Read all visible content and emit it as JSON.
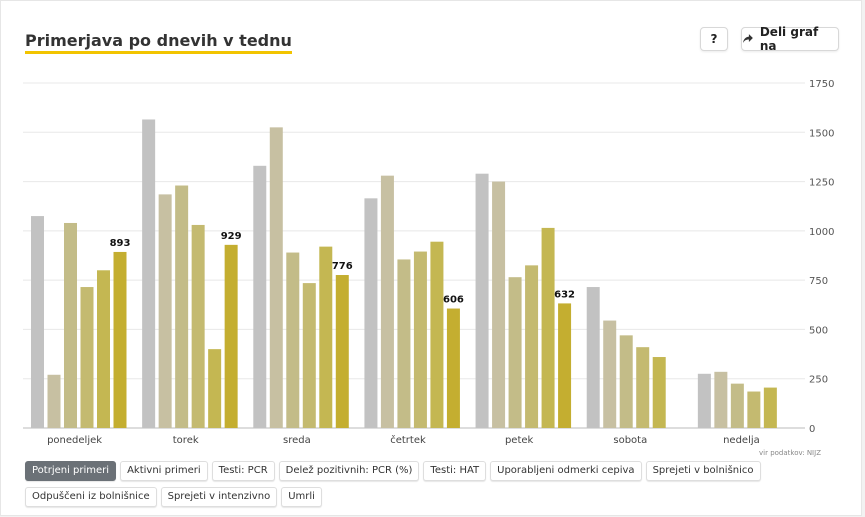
{
  "header": {
    "title": "Primerjava po dnevih v tednu",
    "help_label": "?",
    "share_label": "Deli graf na",
    "share_icon": "share-arrow-icon"
  },
  "source_note": "vir podatkov: NIJZ",
  "tags": [
    {
      "label": "Potrjeni primeri",
      "active": true
    },
    {
      "label": "Aktivni primeri",
      "active": false
    },
    {
      "label": "Testi: PCR",
      "active": false
    },
    {
      "label": "Delež pozitivnih: PCR (%)",
      "active": false
    },
    {
      "label": "Testi: HAT",
      "active": false
    },
    {
      "label": "Uporabljeni odmerki cepiva",
      "active": false
    },
    {
      "label": "Sprejeti v bolnišnico",
      "active": false
    },
    {
      "label": "Odpuščeni iz bolnišnice",
      "active": false
    },
    {
      "label": "Sprejeti v intenzivno",
      "active": false
    },
    {
      "label": "Umrli",
      "active": false
    }
  ],
  "chart_data": {
    "type": "bar",
    "categories": [
      "ponedeljek",
      "torek",
      "sreda",
      "četrtek",
      "petek",
      "sobota",
      "nedelja"
    ],
    "series_colors": [
      "#c2c2c2",
      "#c7c0a2",
      "#c3bc88",
      "#c4ba70",
      "#c4b752",
      "#c4ae30"
    ],
    "values": [
      [
        1075,
        270,
        1040,
        715,
        800,
        893
      ],
      [
        1565,
        1185,
        1230,
        1030,
        400,
        929
      ],
      [
        1330,
        1525,
        890,
        735,
        920,
        776
      ],
      [
        1165,
        1280,
        855,
        895,
        945,
        606
      ],
      [
        1290,
        1250,
        765,
        825,
        1015,
        632
      ],
      [
        715,
        545,
        470,
        410,
        360
      ],
      [
        275,
        285,
        225,
        185,
        205
      ]
    ],
    "value_labels": [
      "893",
      "929",
      "776",
      "606",
      "632",
      "",
      ""
    ],
    "ylim": [
      0,
      1750
    ],
    "yticks": [
      "0",
      "250",
      "500",
      "750",
      "1000",
      "1250",
      "1500",
      "1750"
    ],
    "grid": true,
    "axis_position": "right"
  }
}
